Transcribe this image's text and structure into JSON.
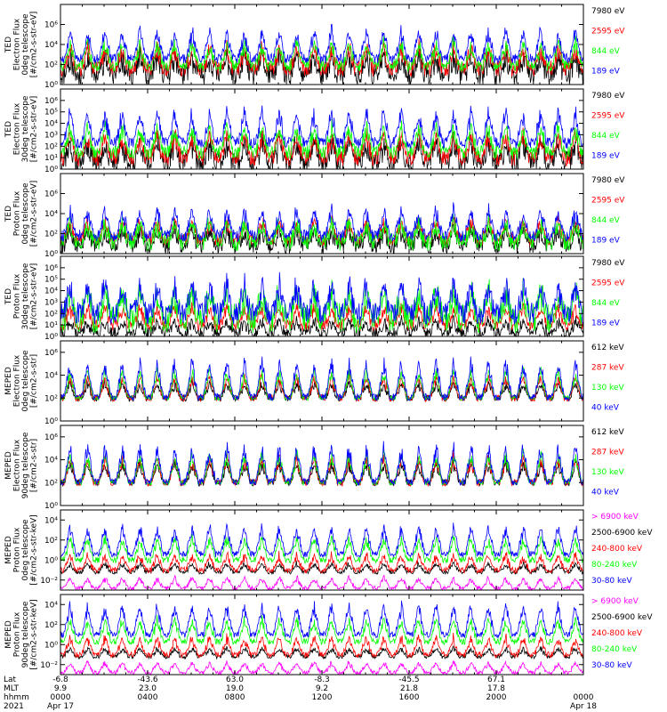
{
  "chart_data": {
    "type": "line",
    "x_axis": {
      "rows": [
        {
          "label": "Lat",
          "values": [
            "-6.8",
            "-43.6",
            "63.0",
            "-8.3",
            "-45.5",
            "67.1"
          ]
        },
        {
          "label": "MLT",
          "values": [
            "9.9",
            "23.0",
            "19.0",
            "9.2",
            "21.8",
            "17.8"
          ]
        },
        {
          "label": "hhmm",
          "values": [
            "0000",
            "0400",
            "0800",
            "1200",
            "1600",
            "2000",
            "0000"
          ]
        }
      ],
      "year": "2021",
      "start_date": "Apr 17",
      "end_date": "Apr 18",
      "hours": [
        0,
        4,
        8,
        12,
        16,
        20,
        24
      ]
    },
    "panels": [
      {
        "ylabel": [
          "TED",
          "Electron Flux",
          "0deg telescope",
          "[#/cm2-s-str-eV]"
        ],
        "yticks": [
          {
            "label": "10⁶",
            "v": 6
          },
          {
            "label": "10⁴",
            "v": 4
          },
          {
            "label": "10²",
            "v": 2
          },
          {
            "label": "10⁰",
            "v": 0
          }
        ],
        "ylim": [
          0,
          8
        ],
        "series": [
          {
            "name": "7980 eV",
            "color": "#000000",
            "base": 1.0,
            "noise": 1.1,
            "peak": 2.0,
            "seed": 11
          },
          {
            "name": "2595 eV",
            "color": "#ff0000",
            "base": 1.6,
            "noise": 0.8,
            "peak": 2.4,
            "seed": 12
          },
          {
            "name": "844 eV",
            "color": "#00ff00",
            "base": 1.9,
            "noise": 0.6,
            "peak": 2.6,
            "seed": 13
          },
          {
            "name": "189 eV",
            "color": "#0000ff",
            "base": 2.6,
            "noise": 0.5,
            "peak": 3.2,
            "seed": 14
          }
        ]
      },
      {
        "ylabel": [
          "TED",
          "Electron Flux",
          "30deg telescope",
          "[#/cm2-s-str-eV]"
        ],
        "yticks": [
          {
            "label": "10⁶",
            "v": 6
          },
          {
            "label": "10⁵",
            "v": 5
          },
          {
            "label": "10⁴",
            "v": 4
          },
          {
            "label": "10³",
            "v": 3
          },
          {
            "label": "10²",
            "v": 2
          },
          {
            "label": "10¹",
            "v": 1
          },
          {
            "label": "10⁰",
            "v": 0
          }
        ],
        "ylim": [
          0,
          7
        ],
        "series": [
          {
            "name": "7980 eV",
            "color": "#000000",
            "base": 0.6,
            "noise": 1.0,
            "peak": 2.0,
            "seed": 21
          },
          {
            "name": "2595 eV",
            "color": "#ff0000",
            "base": 1.0,
            "noise": 0.7,
            "peak": 2.4,
            "seed": 22
          },
          {
            "name": "844 eV",
            "color": "#00ff00",
            "base": 1.5,
            "noise": 0.6,
            "peak": 2.6,
            "seed": 23
          },
          {
            "name": "189 eV",
            "color": "#0000ff",
            "base": 2.3,
            "noise": 0.5,
            "peak": 3.2,
            "seed": 24
          }
        ]
      },
      {
        "ylabel": [
          "TED",
          "Proton Flux",
          "0deg telescope",
          "[#/cm2-s-str-eV]"
        ],
        "yticks": [
          {
            "label": "10⁶",
            "v": 6
          },
          {
            "label": "10⁴",
            "v": 4
          },
          {
            "label": "10²",
            "v": 2
          },
          {
            "label": "10⁰",
            "v": 0
          }
        ],
        "ylim": [
          0,
          8
        ],
        "series": [
          {
            "name": "7980 eV",
            "color": "#000000",
            "base": 0.8,
            "noise": 0.8,
            "peak": 1.8,
            "seed": 31
          },
          {
            "name": "2595 eV",
            "color": "#ff0000",
            "base": 1.4,
            "noise": 0.6,
            "peak": 2.2,
            "seed": 32
          },
          {
            "name": "844 eV",
            "color": "#00ff00",
            "base": 1.2,
            "noise": 0.9,
            "peak": 2.2,
            "seed": 33
          },
          {
            "name": "189 eV",
            "color": "#0000ff",
            "base": 1.8,
            "noise": 0.6,
            "peak": 3.0,
            "seed": 34
          }
        ]
      },
      {
        "ylabel": [
          "TED",
          "Proton Flux",
          "30deg telescope",
          "[#/cm2-s-str-eV]"
        ],
        "yticks": [
          {
            "label": "10⁶",
            "v": 6
          },
          {
            "label": "10⁵",
            "v": 5
          },
          {
            "label": "10⁴",
            "v": 4
          },
          {
            "label": "10³",
            "v": 3
          },
          {
            "label": "10²",
            "v": 2
          },
          {
            "label": "10¹",
            "v": 1
          },
          {
            "label": "10⁰",
            "v": 0
          }
        ],
        "ylim": [
          0,
          7
        ],
        "series": [
          {
            "name": "7980 eV",
            "color": "#000000",
            "base": 0.3,
            "noise": 0.5,
            "peak": 1.2,
            "seed": 41
          },
          {
            "name": "2595 eV",
            "color": "#ff0000",
            "base": 1.0,
            "noise": 0.5,
            "peak": 1.8,
            "seed": 42
          },
          {
            "name": "844 eV",
            "color": "#00ff00",
            "base": 1.6,
            "noise": 1.3,
            "peak": 2.6,
            "seed": 43
          },
          {
            "name": "189 eV",
            "color": "#0000ff",
            "base": 2.0,
            "noise": 1.0,
            "peak": 3.0,
            "seed": 44
          }
        ]
      },
      {
        "ylabel": [
          "MEPED",
          "Electron Flux",
          "0deg telescope",
          "[#/cm2-s-str]"
        ],
        "yticks": [
          {
            "label": "10⁶",
            "v": 6
          },
          {
            "label": "10⁴",
            "v": 4
          },
          {
            "label": "10²",
            "v": 2
          },
          {
            "label": "10⁰",
            "v": 0
          }
        ],
        "ylim": [
          0,
          7
        ],
        "series": [
          {
            "name": "612 keV",
            "color": "#000000",
            "base": 2.0,
            "noise": 0.3,
            "peak": 1.5,
            "seed": 51
          },
          {
            "name": "287 keV",
            "color": "#ff0000",
            "base": 2.0,
            "noise": 0.3,
            "peak": 2.2,
            "seed": 52
          },
          {
            "name": "130 keV",
            "color": "#00ff00",
            "base": 2.0,
            "noise": 0.2,
            "peak": 2.8,
            "seed": 53
          },
          {
            "name": "40 keV",
            "color": "#0000ff",
            "base": 2.1,
            "noise": 0.3,
            "peak": 3.6,
            "seed": 54
          }
        ]
      },
      {
        "ylabel": [
          "MEPED",
          "Electron Flux",
          "90deg telescope",
          "[#/cm2-s-str]"
        ],
        "yticks": [
          {
            "label": "10⁶",
            "v": 6
          },
          {
            "label": "10⁴",
            "v": 4
          },
          {
            "label": "10²",
            "v": 2
          },
          {
            "label": "10⁰",
            "v": 0
          }
        ],
        "ylim": [
          0,
          7
        ],
        "series": [
          {
            "name": "612 keV",
            "color": "#000000",
            "base": 2.0,
            "noise": 0.3,
            "peak": 2.0,
            "seed": 61
          },
          {
            "name": "287 keV",
            "color": "#ff0000",
            "base": 2.0,
            "noise": 0.3,
            "peak": 2.6,
            "seed": 62
          },
          {
            "name": "130 keV",
            "color": "#00ff00",
            "base": 2.0,
            "noise": 0.2,
            "peak": 3.0,
            "seed": 63
          },
          {
            "name": "40 keV",
            "color": "#0000ff",
            "base": 2.1,
            "noise": 0.3,
            "peak": 3.6,
            "seed": 64
          }
        ]
      },
      {
        "ylabel": [
          "MEPED",
          "Proton Flux",
          "0deg telescope",
          "[#/cm2-s-str-keV]"
        ],
        "yticks": [
          {
            "label": "10⁴",
            "v": 4
          },
          {
            "label": "10²",
            "v": 2
          },
          {
            "label": "10⁰",
            "v": 0
          },
          {
            "label": "10⁻²",
            "v": -2
          }
        ],
        "ylim": [
          -3,
          5
        ],
        "series": [
          {
            "name": "> 6900 keV",
            "color": "#ff00ff",
            "base": -2.8,
            "noise": 0.2,
            "peak": 1.2,
            "seed": 71
          },
          {
            "name": "2500-6900 keV",
            "color": "#000000",
            "base": -1.2,
            "noise": 0.2,
            "peak": 1.0,
            "seed": 72
          },
          {
            "name": "240-800 keV",
            "color": "#ff0000",
            "base": -1.0,
            "noise": 0.3,
            "peak": 1.8,
            "seed": 73
          },
          {
            "name": "80-240 keV",
            "color": "#00ff00",
            "base": 0.0,
            "noise": 0.3,
            "peak": 2.6,
            "seed": 74
          },
          {
            "name": "30-80 keV",
            "color": "#0000ff",
            "base": 0.6,
            "noise": 0.3,
            "peak": 3.2,
            "seed": 75
          }
        ]
      },
      {
        "ylabel": [
          "MEPED",
          "Proton Flux",
          "90deg telescope",
          "[#/cm2-s-str-keV]"
        ],
        "yticks": [
          {
            "label": "10⁴",
            "v": 4
          },
          {
            "label": "10²",
            "v": 2
          },
          {
            "label": "10⁰",
            "v": 0
          },
          {
            "label": "10⁻²",
            "v": -2
          }
        ],
        "ylim": [
          -3,
          5
        ],
        "series": [
          {
            "name": "> 6900 keV",
            "color": "#ff00ff",
            "base": -2.8,
            "noise": 0.2,
            "peak": 1.2,
            "seed": 81
          },
          {
            "name": "2500-6900 keV",
            "color": "#000000",
            "base": -1.2,
            "noise": 0.2,
            "peak": 1.0,
            "seed": 82
          },
          {
            "name": "240-800 keV",
            "color": "#ff0000",
            "base": -1.0,
            "noise": 0.3,
            "peak": 2.0,
            "seed": 83
          },
          {
            "name": "80-240 keV",
            "color": "#00ff00",
            "base": 0.3,
            "noise": 0.3,
            "peak": 2.6,
            "seed": 84
          },
          {
            "name": "30-80 keV",
            "color": "#0000ff",
            "base": 1.0,
            "noise": 0.3,
            "peak": 3.4,
            "seed": 85
          }
        ]
      }
    ]
  }
}
